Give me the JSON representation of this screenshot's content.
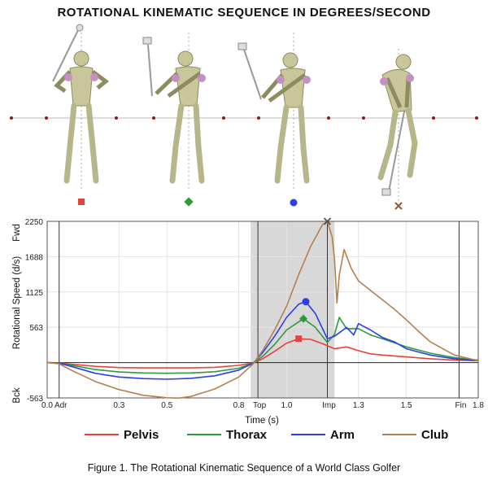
{
  "title": "ROTATIONAL KINEMATIC SEQUENCE IN DEGREES/SECOND",
  "caption": "Figure 1. The Rotational Kinematic Sequence of a World Class Golfer",
  "chart_data": {
    "type": "line",
    "xlabel": "Time (s)",
    "ylabel": "Rotational Speed (d/s)",
    "y_top_label": "Fwd",
    "y_bottom_label": "Bck",
    "xlim": [
      0.0,
      1.8
    ],
    "ylim": [
      -563,
      2250
    ],
    "x_ticks": [
      {
        "x": 0.0,
        "label": "0.0"
      },
      {
        "x": 0.3,
        "label": "0.3"
      },
      {
        "x": 0.5,
        "label": "0.5"
      },
      {
        "x": 0.8,
        "label": "0.8"
      },
      {
        "x": 1.0,
        "label": "1.0"
      },
      {
        "x": 1.3,
        "label": "1.3"
      },
      {
        "x": 1.5,
        "label": "1.5"
      },
      {
        "x": 1.8,
        "label": "1.8"
      }
    ],
    "y_ticks": [
      {
        "y": 2250,
        "label": "2250"
      },
      {
        "y": 1688,
        "label": "1688"
      },
      {
        "y": 1125,
        "label": "1125"
      },
      {
        "y": 563,
        "label": "563"
      },
      {
        "y": -563,
        "label": "-563"
      }
    ],
    "events": [
      {
        "x": 0.05,
        "label": "Adr"
      },
      {
        "x": 0.88,
        "label": "Top"
      },
      {
        "x": 1.17,
        "label": "Imp"
      },
      {
        "x": 1.72,
        "label": "Fin"
      }
    ],
    "shaded_region": [
      0.85,
      1.2
    ],
    "grid": true,
    "legend_position": "bottom",
    "series": [
      {
        "name": "Pelvis",
        "color": "#e8403a",
        "marker": "square",
        "peak": {
          "x": 1.05,
          "y": 380
        },
        "points": [
          [
            0.0,
            0
          ],
          [
            0.05,
            -5
          ],
          [
            0.1,
            -25
          ],
          [
            0.2,
            -60
          ],
          [
            0.3,
            -80
          ],
          [
            0.4,
            -85
          ],
          [
            0.5,
            -85
          ],
          [
            0.6,
            -85
          ],
          [
            0.7,
            -75
          ],
          [
            0.8,
            -45
          ],
          [
            0.86,
            -5
          ],
          [
            0.9,
            60
          ],
          [
            0.95,
            180
          ],
          [
            1.0,
            310
          ],
          [
            1.05,
            380
          ],
          [
            1.1,
            370
          ],
          [
            1.15,
            300
          ],
          [
            1.2,
            220
          ],
          [
            1.25,
            250
          ],
          [
            1.3,
            190
          ],
          [
            1.35,
            140
          ],
          [
            1.4,
            120
          ],
          [
            1.5,
            90
          ],
          [
            1.6,
            60
          ],
          [
            1.7,
            40
          ],
          [
            1.8,
            30
          ]
        ]
      },
      {
        "name": "Thorax",
        "color": "#2e9a3a",
        "marker": "diamond",
        "peak": {
          "x": 1.07,
          "y": 700
        },
        "points": [
          [
            0.0,
            0
          ],
          [
            0.05,
            -10
          ],
          [
            0.1,
            -40
          ],
          [
            0.2,
            -110
          ],
          [
            0.3,
            -150
          ],
          [
            0.4,
            -165
          ],
          [
            0.5,
            -170
          ],
          [
            0.6,
            -165
          ],
          [
            0.7,
            -145
          ],
          [
            0.8,
            -90
          ],
          [
            0.86,
            -10
          ],
          [
            0.9,
            100
          ],
          [
            0.95,
            290
          ],
          [
            1.0,
            520
          ],
          [
            1.07,
            700
          ],
          [
            1.12,
            560
          ],
          [
            1.17,
            320
          ],
          [
            1.2,
            450
          ],
          [
            1.22,
            720
          ],
          [
            1.25,
            540
          ],
          [
            1.3,
            540
          ],
          [
            1.35,
            440
          ],
          [
            1.4,
            380
          ],
          [
            1.5,
            250
          ],
          [
            1.6,
            150
          ],
          [
            1.7,
            80
          ],
          [
            1.8,
            40
          ]
        ]
      },
      {
        "name": "Arm",
        "color": "#2b3fe8",
        "marker": "circle",
        "peak": {
          "x": 1.08,
          "y": 970
        },
        "points": [
          [
            0.0,
            0
          ],
          [
            0.05,
            -10
          ],
          [
            0.1,
            -60
          ],
          [
            0.2,
            -170
          ],
          [
            0.3,
            -230
          ],
          [
            0.4,
            -255
          ],
          [
            0.5,
            -265
          ],
          [
            0.6,
            -250
          ],
          [
            0.7,
            -210
          ],
          [
            0.8,
            -120
          ],
          [
            0.86,
            -10
          ],
          [
            0.9,
            160
          ],
          [
            0.95,
            420
          ],
          [
            1.0,
            720
          ],
          [
            1.05,
            930
          ],
          [
            1.08,
            970
          ],
          [
            1.12,
            780
          ],
          [
            1.17,
            380
          ],
          [
            1.2,
            420
          ],
          [
            1.25,
            560
          ],
          [
            1.28,
            440
          ],
          [
            1.3,
            620
          ],
          [
            1.35,
            520
          ],
          [
            1.4,
            400
          ],
          [
            1.45,
            330
          ],
          [
            1.5,
            220
          ],
          [
            1.6,
            120
          ],
          [
            1.7,
            60
          ],
          [
            1.8,
            30
          ]
        ]
      },
      {
        "name": "Club",
        "color": "#b5804e",
        "marker": "x",
        "peak": {
          "x": 1.17,
          "y": 2250
        },
        "points": [
          [
            0.0,
            0
          ],
          [
            0.05,
            -20
          ],
          [
            0.1,
            -120
          ],
          [
            0.2,
            -300
          ],
          [
            0.3,
            -430
          ],
          [
            0.4,
            -520
          ],
          [
            0.5,
            -560
          ],
          [
            0.55,
            -565
          ],
          [
            0.6,
            -540
          ],
          [
            0.7,
            -420
          ],
          [
            0.8,
            -230
          ],
          [
            0.86,
            -20
          ],
          [
            0.9,
            190
          ],
          [
            0.95,
            520
          ],
          [
            1.0,
            900
          ],
          [
            1.05,
            1400
          ],
          [
            1.1,
            1850
          ],
          [
            1.15,
            2200
          ],
          [
            1.17,
            2250
          ],
          [
            1.19,
            2000
          ],
          [
            1.2,
            1650
          ],
          [
            1.21,
            950
          ],
          [
            1.22,
            1400
          ],
          [
            1.24,
            1800
          ],
          [
            1.27,
            1500
          ],
          [
            1.3,
            1300
          ],
          [
            1.35,
            1150
          ],
          [
            1.4,
            1000
          ],
          [
            1.45,
            850
          ],
          [
            1.5,
            680
          ],
          [
            1.55,
            500
          ],
          [
            1.6,
            330
          ],
          [
            1.7,
            120
          ],
          [
            1.8,
            30
          ]
        ]
      }
    ]
  }
}
